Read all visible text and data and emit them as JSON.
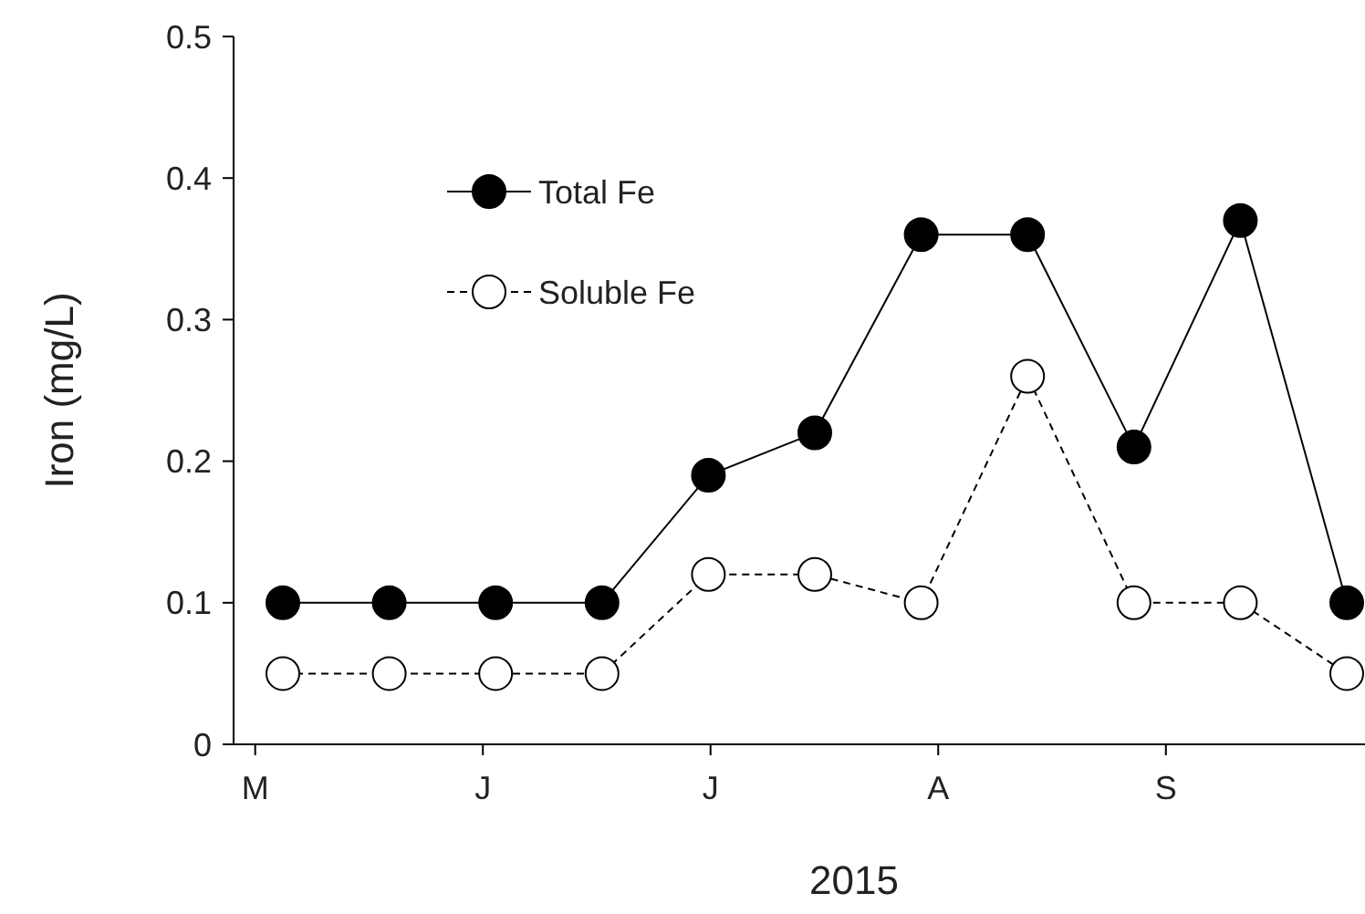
{
  "chart_data": {
    "type": "line",
    "xlabel": "2015",
    "ylabel": "Iron (mg/L)",
    "categories": [
      null,
      null,
      null,
      null,
      null,
      null,
      null,
      null,
      null,
      null,
      null
    ],
    "series": [
      {
        "name": "Total Fe",
        "color": "#000000",
        "line_style": "solid",
        "values": [
          0.1,
          0.1,
          0.1,
          0.1,
          0.19,
          0.22,
          0.36,
          0.36,
          0.21,
          0.37,
          0.1
        ]
      },
      {
        "name": "Soluble Fe",
        "color": "#ffffff",
        "line_style": "dashed",
        "values": [
          0.05,
          0.05,
          0.05,
          0.05,
          0.12,
          0.12,
          0.1,
          0.26,
          0.1,
          0.1,
          0.05
        ]
      }
    ],
    "annotations": [
      "M",
      "J",
      "J",
      "A",
      "S"
    ],
    "ylim": [
      0,
      0.5
    ],
    "yticks": [
      0,
      0.1,
      0.2,
      0.3,
      0.4,
      0.5
    ],
    "marker": "circle",
    "legend": "top left",
    "grid": false
  }
}
